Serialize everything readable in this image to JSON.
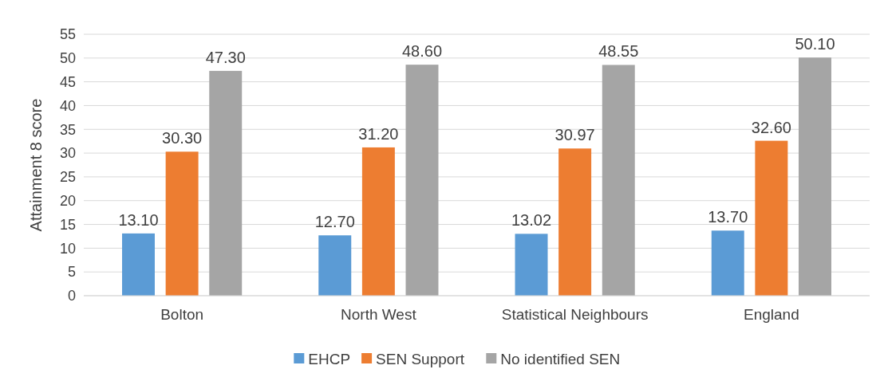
{
  "chart_data": {
    "type": "bar",
    "ylabel": "Attainment 8 score",
    "categories": [
      "Bolton",
      "North West",
      "Statistical Neighbours",
      "England"
    ],
    "series": [
      {
        "name": "EHCP",
        "color": "#5b9bd5",
        "values": [
          13.1,
          12.7,
          13.02,
          13.7
        ],
        "value_labels": [
          "13.10",
          "12.70",
          "13.02",
          "13.70"
        ]
      },
      {
        "name": "SEN Support",
        "color": "#ed7d31",
        "values": [
          30.3,
          31.2,
          30.97,
          32.6
        ],
        "value_labels": [
          "30.30",
          "31.20",
          "30.97",
          "32.60"
        ]
      },
      {
        "name": "No identified SEN",
        "color": "#a5a5a5",
        "values": [
          47.3,
          48.6,
          48.55,
          50.1
        ],
        "value_labels": [
          "47.30",
          "48.60",
          "48.55",
          "50.10"
        ]
      }
    ],
    "ylim": [
      0,
      55
    ],
    "yticks": [
      0,
      5,
      10,
      15,
      20,
      25,
      30,
      35,
      40,
      45,
      50,
      55
    ],
    "grid": "y",
    "legend": "bottom"
  }
}
